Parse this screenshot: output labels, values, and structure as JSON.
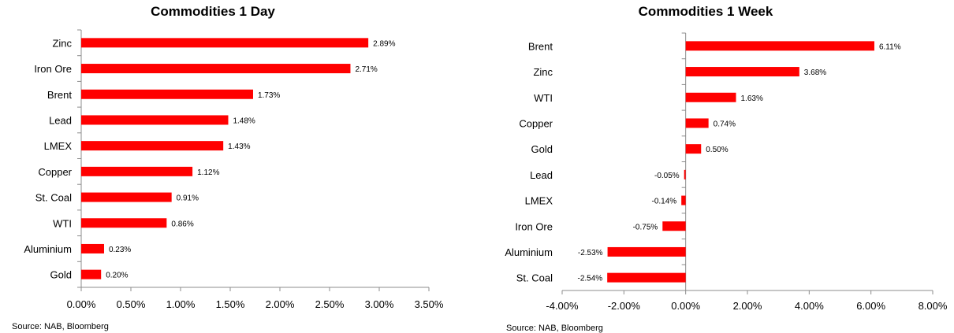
{
  "chart_data": [
    {
      "type": "bar",
      "orientation": "horizontal",
      "title": "Commodities 1 Day",
      "categories": [
        "Zinc",
        "Iron Ore",
        "Brent",
        "Lead",
        "LMEX",
        "Copper",
        "St. Coal",
        "WTI",
        "Aluminium",
        "Gold"
      ],
      "values": [
        2.89,
        2.71,
        1.73,
        1.48,
        1.43,
        1.12,
        0.91,
        0.86,
        0.23,
        0.2
      ],
      "data_labels": [
        "2.89%",
        "2.71%",
        "1.73%",
        "1.48%",
        "1.43%",
        "1.12%",
        "0.91%",
        "0.86%",
        "0.23%",
        "0.20%"
      ],
      "xlim": [
        0,
        3.5
      ],
      "xticks": [
        0,
        0.5,
        1.0,
        1.5,
        2.0,
        2.5,
        3.0,
        3.5
      ],
      "xtick_labels": [
        "0.00%",
        "0.50%",
        "1.00%",
        "1.50%",
        "2.00%",
        "2.50%",
        "3.00%",
        "3.50%"
      ],
      "color": "#ff0000",
      "grid": false,
      "source": "Source: NAB, Bloomberg"
    },
    {
      "type": "bar",
      "orientation": "horizontal",
      "title": "Commodities 1 Week",
      "categories": [
        "Brent",
        "Zinc",
        "WTI",
        "Copper",
        "Gold",
        "Lead",
        "LMEX",
        "Iron Ore",
        "Aluminium",
        "St. Coal"
      ],
      "values": [
        6.11,
        3.68,
        1.63,
        0.74,
        0.5,
        -0.05,
        -0.14,
        -0.75,
        -2.53,
        -2.54
      ],
      "data_labels": [
        "6.11%",
        "3.68%",
        "1.63%",
        "0.74%",
        "0.50%",
        "-0.05%",
        "-0.14%",
        "-0.75%",
        "-2.53%",
        "-2.54%"
      ],
      "xlim": [
        -4,
        8
      ],
      "xticks": [
        -4,
        -2,
        0,
        2,
        4,
        6,
        8
      ],
      "xtick_labels": [
        "-4.00%",
        "-2.00%",
        "0.00%",
        "2.00%",
        "4.00%",
        "6.00%",
        "8.00%"
      ],
      "color": "#ff0000",
      "grid": false,
      "source": "Source: NAB, Bloomberg"
    }
  ]
}
